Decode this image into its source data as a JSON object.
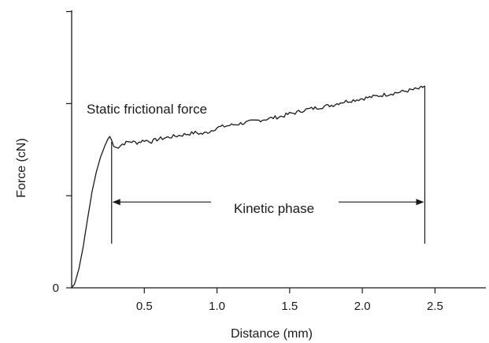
{
  "chart_data": {
    "type": "line",
    "title": "",
    "xlabel": "Distance (mm)",
    "ylabel": "Force (cN)",
    "xlim": [
      0,
      2.85
    ],
    "ylim": [
      0,
      2.2
    ],
    "x_ticks": [
      {
        "value": 0.5,
        "label": "0.5"
      },
      {
        "value": 1.0,
        "label": "1.0"
      },
      {
        "value": 1.5,
        "label": "1.5"
      },
      {
        "value": 2.0,
        "label": "2.0"
      },
      {
        "value": 2.5,
        "label": "2.5"
      }
    ],
    "y_ticks": [
      {
        "value": 0,
        "label": "0"
      },
      {
        "value": 0.73,
        "label": ""
      },
      {
        "value": 1.46,
        "label": ""
      },
      {
        "value": 2.19,
        "label": ""
      }
    ],
    "grid": false,
    "series": [
      {
        "color": "#1a1a1a",
        "x": [
          0.0,
          0.02,
          0.05,
          0.08,
          0.11,
          0.14,
          0.17,
          0.2,
          0.23,
          0.25,
          0.262,
          0.275,
          0.29,
          0.31,
          0.35,
          0.4,
          0.45,
          0.5,
          0.55,
          0.6,
          0.65,
          0.7,
          0.75,
          0.8,
          0.85,
          0.9,
          0.95,
          1.0,
          1.05,
          1.1,
          1.15,
          1.2,
          1.25,
          1.3,
          1.35,
          1.4,
          1.45,
          1.5,
          1.55,
          1.6,
          1.65,
          1.7,
          1.75,
          1.8,
          1.85,
          1.9,
          1.95,
          2.0,
          2.05,
          2.1,
          2.15,
          2.2,
          2.25,
          2.3,
          2.35,
          2.4,
          2.43
        ],
        "y": [
          0.0,
          0.03,
          0.15,
          0.33,
          0.55,
          0.76,
          0.92,
          1.04,
          1.13,
          1.18,
          1.2,
          1.17,
          1.12,
          1.11,
          1.14,
          1.16,
          1.15,
          1.17,
          1.16,
          1.18,
          1.19,
          1.2,
          1.21,
          1.22,
          1.23,
          1.22,
          1.24,
          1.27,
          1.28,
          1.29,
          1.3,
          1.31,
          1.32,
          1.33,
          1.34,
          1.35,
          1.36,
          1.38,
          1.39,
          1.41,
          1.42,
          1.43,
          1.44,
          1.45,
          1.47,
          1.48,
          1.49,
          1.5,
          1.51,
          1.52,
          1.53,
          1.54,
          1.55,
          1.56,
          1.57,
          1.58,
          1.6
        ]
      }
    ],
    "annotations": {
      "static_label": "Static frictional force",
      "kinetic_label": "Kinetic phase",
      "kinetic_start": 0.275,
      "kinetic_end": 2.43,
      "kinetic_arrow_y": 0.68
    }
  }
}
